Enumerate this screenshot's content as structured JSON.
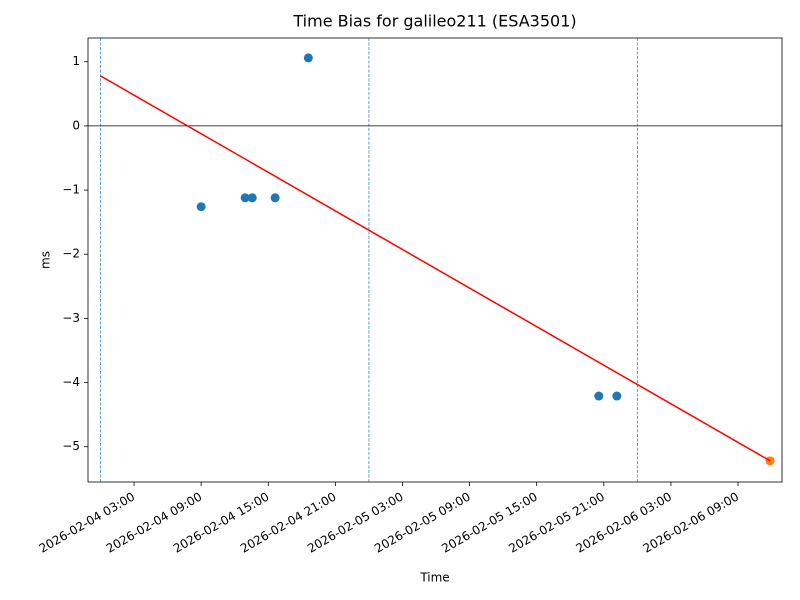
{
  "chart_data": {
    "type": "scatter",
    "title": "Time Bias for galileo211 (ESA3501)",
    "x_label": "Time",
    "y_label": "ms",
    "xlim": [
      "2026-02-03 22:53",
      "2026-02-06 12:56"
    ],
    "ylim": [
      -5.55,
      1.37
    ],
    "xticks": [
      "2026-02-04 03:00",
      "2026-02-04 09:00",
      "2026-02-04 15:00",
      "2026-02-04 21:00",
      "2026-02-05 03:00",
      "2026-02-05 09:00",
      "2026-02-05 15:00",
      "2026-02-05 21:00",
      "2026-02-06 03:00",
      "2026-02-06 09:00"
    ],
    "yticks": [
      {
        "value": -5,
        "label": "−5"
      },
      {
        "value": -4,
        "label": "−4"
      },
      {
        "value": -3,
        "label": "−3"
      },
      {
        "value": -2,
        "label": "−2"
      },
      {
        "value": -1,
        "label": "−1"
      },
      0,
      1
    ],
    "hline": 0,
    "hline_color": "#000000",
    "vlines": [
      "2026-02-04 00:00",
      "2026-02-05 00:00",
      "2026-02-06 00:00"
    ],
    "vline_color": "#1f77b4",
    "series": [
      {
        "color": "#1f77b4",
        "x": [
          "2026-02-04 09:00",
          "2026-02-04 12:56",
          "2026-02-04 13:34",
          "2026-02-04 15:37",
          "2026-02-04 18:35",
          "2026-02-05 20:33",
          "2026-02-05 22:10"
        ],
        "values": [
          -1.26,
          -1.12,
          -1.12,
          -1.12,
          1.06,
          -4.21,
          -4.21
        ]
      },
      {
        "color": "#ff7f0e",
        "x": [
          "2026-02-06 11:52"
        ],
        "values": [
          -5.22
        ]
      },
      {
        "type": "line",
        "color": "#ff0000",
        "x": [
          "2026-02-04 00:00",
          "2026-02-06 11:52"
        ],
        "values": [
          0.78,
          -5.22
        ]
      }
    ]
  }
}
